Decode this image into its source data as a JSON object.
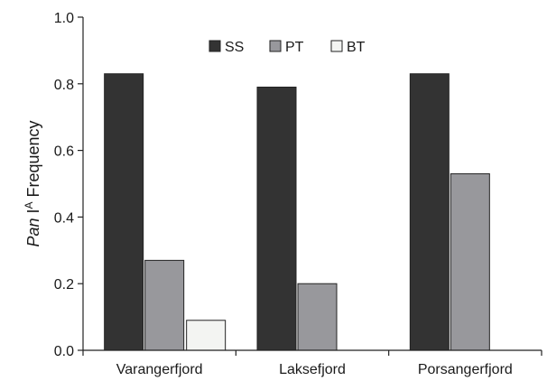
{
  "chart_data": {
    "type": "bar",
    "categories": [
      "Varangerfjord",
      "Laksefjord",
      "Porsangerfjord"
    ],
    "series": [
      {
        "name": "SS",
        "values": [
          0.83,
          0.79,
          0.83
        ],
        "color": "#333333"
      },
      {
        "name": "PT",
        "values": [
          0.27,
          0.2,
          0.53
        ],
        "color": "#98989c"
      },
      {
        "name": "BT",
        "values": [
          0.09,
          null,
          null
        ],
        "color": "#f3f4f2"
      }
    ],
    "ylabel": {
      "italic": "Pan",
      "roman": " I",
      "superscript": "A",
      "rest": " Frequency"
    },
    "ylim": [
      0,
      1.0
    ],
    "yticks": [
      "0.0",
      "0.2",
      "0.4",
      "0.6",
      "0.8",
      "1.0"
    ],
    "legend_position": "top-center",
    "grid": false
  }
}
